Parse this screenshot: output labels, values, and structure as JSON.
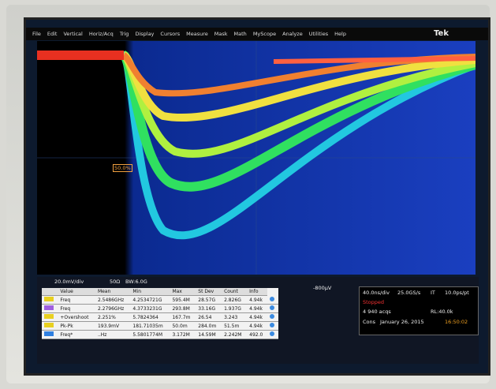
{
  "menu": {
    "items": [
      "File",
      "Edit",
      "Vertical",
      "Horiz/Acq",
      "Trig",
      "Display",
      "Cursors",
      "Measure",
      "Mask",
      "Math",
      "MyScope",
      "Analyze",
      "Utilities",
      "Help"
    ],
    "brand": "Tek"
  },
  "channel": {
    "scale": "20.0mV/div",
    "impedance": "50Ω",
    "bandwidth": "BW:6.0G"
  },
  "marker": "50.0%",
  "trigger": {
    "level": "-800μV"
  },
  "acquisition": {
    "timebase": "40.0ns/div",
    "sample_rate": "25.0GS/s",
    "mode": "IT",
    "resolution": "10.0ps/pt",
    "state": "Stopped",
    "acqs": "4 940 acqs",
    "record_length": "RL:40.0k",
    "trigger_mode": "Cons",
    "date": "January 26, 2015",
    "time": "16:50:02"
  },
  "measurements": {
    "columns": [
      "Value",
      "Mean",
      "Min",
      "Max",
      "St Dev",
      "Count",
      "Info"
    ],
    "rows": [
      [
        "Freq",
        "2.5486GHz",
        "4.2534721G",
        "595.4M",
        "28.57G",
        "2.826G",
        "4.94k"
      ],
      [
        "Freq",
        "2.2796GHz",
        "4.3733231G",
        "293.8M",
        "33.16G",
        "1.937G",
        "4.94k"
      ],
      [
        "+Overshoot",
        "2.251%",
        "5.7824364",
        "167.7m",
        "26.54",
        "3.243",
        "4.94k"
      ],
      [
        "Pk-Pk",
        "193.9mV",
        "181.71035m",
        "50.0m",
        "284.0m",
        "51.5m",
        "4.94k"
      ],
      [
        "Freq*",
        "..Hz",
        "5.5801774M",
        "3.172M",
        "14.59M",
        "2.242M",
        "492.0"
      ]
    ]
  }
}
